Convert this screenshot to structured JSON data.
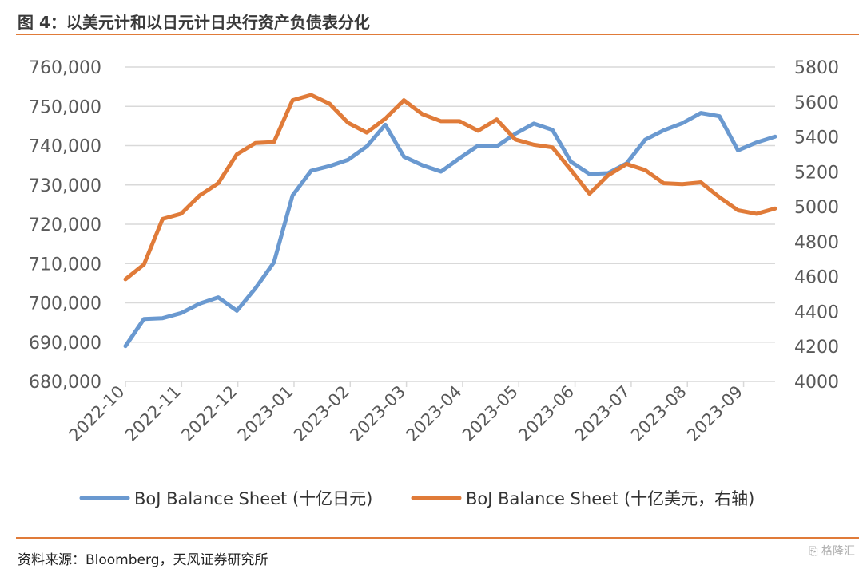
{
  "header": {
    "title": "图 4：以美元计和以日元计日央行资产负债表分化"
  },
  "footer": {
    "source": "资料来源：Bloomberg，天风证券研究所"
  },
  "watermark": {
    "text": "格隆汇",
    "icon": "gelonghui-logo-icon"
  },
  "colors": {
    "series_jpy": "#6a99d0",
    "series_usd": "#e07b39",
    "grid": "#d9d9d9",
    "axis_text": "#595959",
    "accent": "#e07b39"
  },
  "chart_data": {
    "type": "line",
    "title": "",
    "xlabel": "",
    "ylabel": "",
    "y_left": {
      "ylim": [
        680000,
        760000
      ],
      "ticks": [
        680000,
        690000,
        700000,
        710000,
        720000,
        730000,
        740000,
        750000,
        760000
      ],
      "tick_labels": [
        "680,000",
        "690,000",
        "700,000",
        "710,000",
        "720,000",
        "730,000",
        "740,000",
        "750,000",
        "760,000"
      ]
    },
    "y_right": {
      "ylim": [
        4000,
        5800
      ],
      "ticks": [
        4000,
        4200,
        4400,
        4600,
        4800,
        5000,
        5200,
        5400,
        5600,
        5800
      ],
      "tick_labels": [
        "4000",
        "4200",
        "4400",
        "4600",
        "4800",
        "5000",
        "5200",
        "5400",
        "5600",
        "5800"
      ]
    },
    "x_ticks": [
      "2022-10",
      "2022-11",
      "2022-12",
      "2023-01",
      "2023-02",
      "2023-03",
      "2023-04",
      "2023-05",
      "2023-06",
      "2023-07",
      "2023-08",
      "2023-09"
    ],
    "grid": true,
    "legend_position": "bottom",
    "series": [
      {
        "name": "BoJ Balance Sheet (十亿日元)",
        "axis": "left",
        "color": "#6a99d0",
        "values": [
          689000,
          695900,
          696100,
          697400,
          699800,
          701400,
          698000,
          703700,
          710300,
          727300,
          733600,
          734800,
          736400,
          739800,
          745300,
          737200,
          735000,
          733400,
          736800,
          740000,
          739800,
          743000,
          745600,
          744000,
          735900,
          732800,
          733000,
          735500,
          741500,
          743900,
          745700,
          748300,
          747500,
          738800,
          740800,
          742300
        ]
      },
      {
        "name": "BoJ Balance Sheet (十亿美元，右轴)",
        "axis": "right",
        "color": "#e07b39",
        "values": [
          4585,
          4670,
          4930,
          4960,
          5065,
          5135,
          5300,
          5365,
          5370,
          5610,
          5640,
          5590,
          5480,
          5425,
          5505,
          5610,
          5530,
          5490,
          5490,
          5435,
          5500,
          5385,
          5355,
          5340,
          5210,
          5075,
          5180,
          5245,
          5210,
          5135,
          5130,
          5140,
          5055,
          4980,
          4960,
          4990
        ]
      }
    ]
  }
}
